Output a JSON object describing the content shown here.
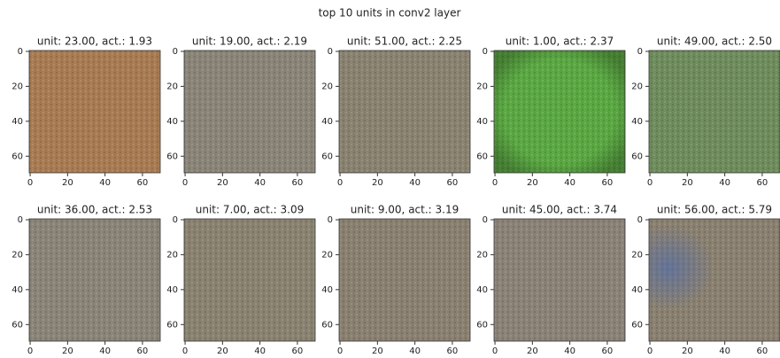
{
  "title": "top 10 units in conv2 layer",
  "chart_data": [
    {
      "type": "image",
      "title": "unit: 23.00, act.: 1.93",
      "color": "#a87b52",
      "xlim": [
        -0.5,
        69.5
      ],
      "ylim": [
        69.5,
        -0.5
      ],
      "xticks": [
        0,
        20,
        40,
        60
      ],
      "yticks": [
        0,
        20,
        40,
        60
      ]
    },
    {
      "type": "image",
      "title": "unit: 19.00, act.: 2.19",
      "color": "#8a8478",
      "xlim": [
        -0.5,
        69.5
      ],
      "ylim": [
        69.5,
        -0.5
      ],
      "xticks": [
        0,
        20,
        40,
        60
      ],
      "yticks": [
        0,
        20,
        40,
        60
      ]
    },
    {
      "type": "image",
      "title": "unit: 51.00, act.: 2.25",
      "color": "#8a8270",
      "xlim": [
        -0.5,
        69.5
      ],
      "ylim": [
        69.5,
        -0.5
      ],
      "xticks": [
        0,
        20,
        40,
        60
      ],
      "yticks": [
        0,
        20,
        40,
        60
      ]
    },
    {
      "type": "image",
      "title": "unit: 1.00, act.: 2.37",
      "color": "#5aa842",
      "xlim": [
        -0.5,
        69.5
      ],
      "ylim": [
        69.5,
        -0.5
      ],
      "xticks": [
        0,
        20,
        40,
        60
      ],
      "yticks": [
        0,
        20,
        40,
        60
      ]
    },
    {
      "type": "image",
      "title": "unit: 49.00, act.: 2.50",
      "color": "#6e8c5c",
      "xlim": [
        -0.5,
        69.5
      ],
      "ylim": [
        69.5,
        -0.5
      ],
      "xticks": [
        0,
        20,
        40,
        60
      ],
      "yticks": [
        0,
        20,
        40,
        60
      ]
    },
    {
      "type": "image",
      "title": "unit: 36.00, act.: 2.53",
      "color": "#8a8478",
      "xlim": [
        -0.5,
        69.5
      ],
      "ylim": [
        69.5,
        -0.5
      ],
      "xticks": [
        0,
        20,
        40,
        60
      ],
      "yticks": [
        0,
        20,
        40,
        60
      ]
    },
    {
      "type": "image",
      "title": "unit: 7.00, act.: 3.09",
      "color": "#8a8270",
      "xlim": [
        -0.5,
        69.5
      ],
      "ylim": [
        69.5,
        -0.5
      ],
      "xticks": [
        0,
        20,
        40,
        60
      ],
      "yticks": [
        0,
        20,
        40,
        60
      ]
    },
    {
      "type": "image",
      "title": "unit: 9.00, act.: 3.19",
      "color": "#8a8070",
      "xlim": [
        -0.5,
        69.5
      ],
      "ylim": [
        69.5,
        -0.5
      ],
      "xticks": [
        0,
        20,
        40,
        60
      ],
      "yticks": [
        0,
        20,
        40,
        60
      ]
    },
    {
      "type": "image",
      "title": "unit: 45.00, act.: 3.74",
      "color": "#8a8276",
      "xlim": [
        -0.5,
        69.5
      ],
      "ylim": [
        69.5,
        -0.5
      ],
      "xticks": [
        0,
        20,
        40,
        60
      ],
      "yticks": [
        0,
        20,
        40,
        60
      ]
    },
    {
      "type": "image",
      "title": "unit: 56.00, act.: 5.79",
      "color": "#8a8070",
      "xlim": [
        -0.5,
        69.5
      ],
      "ylim": [
        69.5,
        -0.5
      ],
      "xticks": [
        0,
        20,
        40,
        60
      ],
      "yticks": [
        0,
        20,
        40,
        60
      ]
    }
  ]
}
